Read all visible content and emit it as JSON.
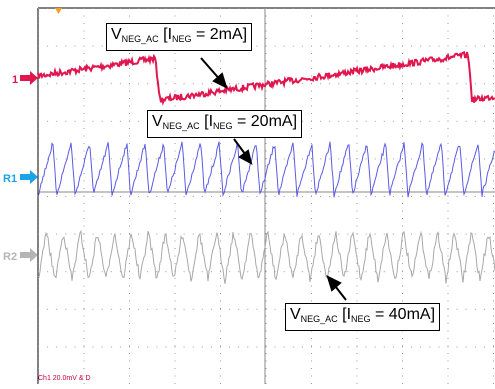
{
  "scope": {
    "channels": [
      {
        "marker_label": "1",
        "color": "#e0174f",
        "marker_color": "#e0174f"
      },
      {
        "marker_label": "R1",
        "color": "#5a5ae6",
        "marker_color": "#1aa3e6"
      },
      {
        "marker_label": "R2",
        "color": "#a8a8a8",
        "marker_color": "#b5b5b5"
      }
    ],
    "trigger_marker_color": "#f0a020",
    "annotations": [
      {
        "main": "V",
        "sub": "NEG_AC",
        "mid": " [I",
        "sub2": "NEG",
        "tail": " = 2mA]"
      },
      {
        "main": "V",
        "sub": "NEG_AC",
        "mid": " [I",
        "sub2": "NEG",
        "tail": " = 20mA]"
      },
      {
        "main": "V",
        "sub": "NEG_AC",
        "mid": " [I",
        "sub2": "NEG",
        "tail": " = 40mA]"
      }
    ],
    "status_text": "Ch1     20.0mV  &  D"
  }
}
